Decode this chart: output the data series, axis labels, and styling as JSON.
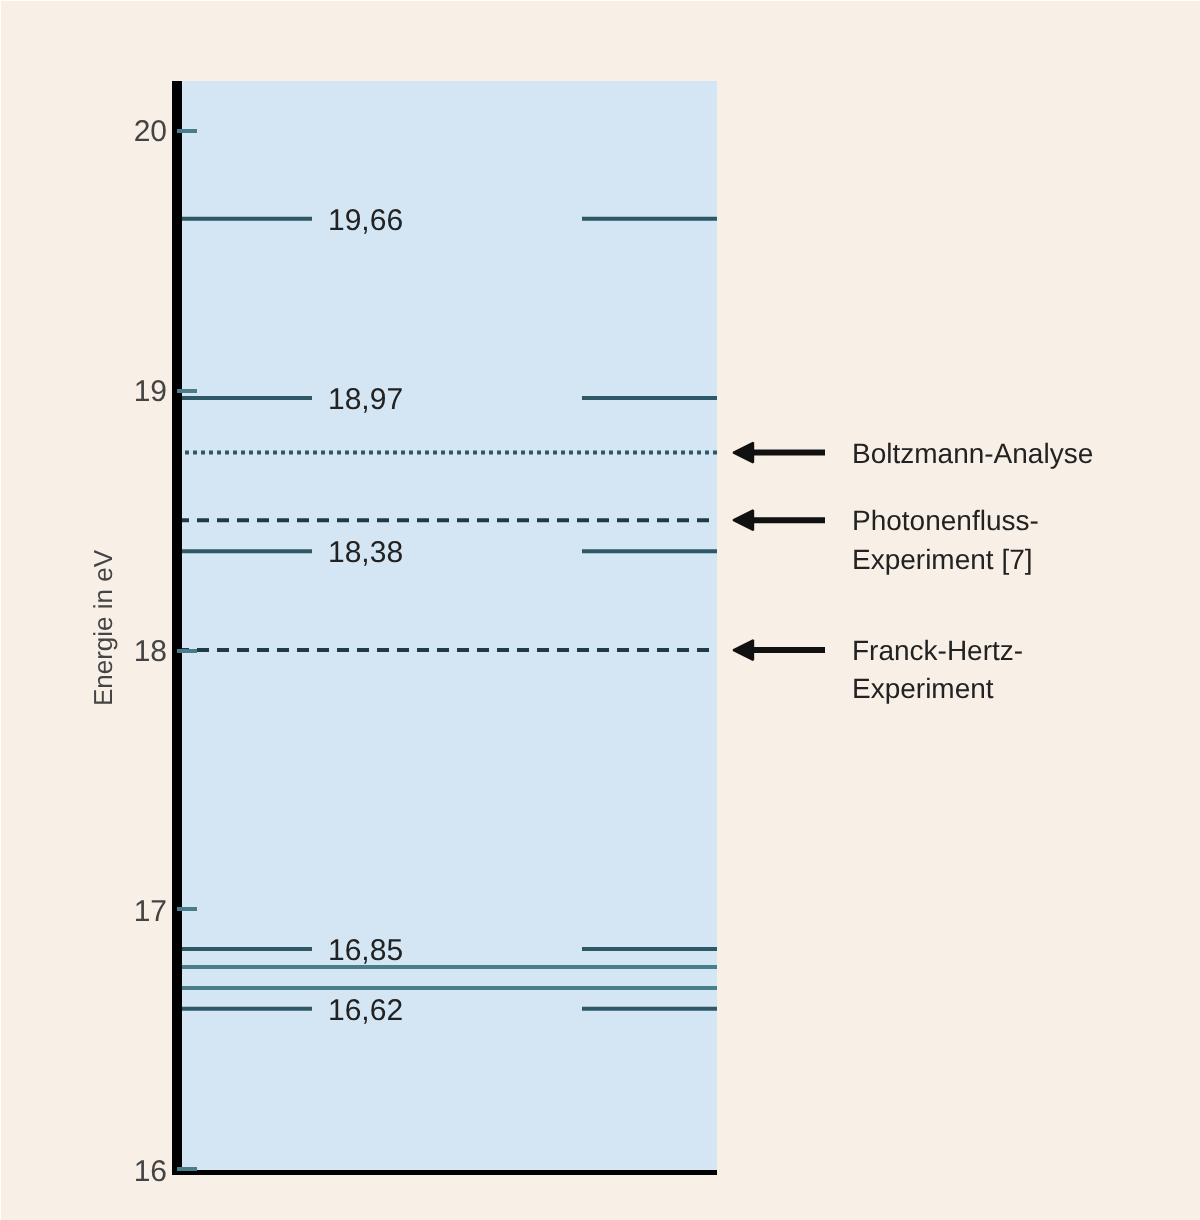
{
  "chart_data": {
    "type": "line",
    "ylabel": "Energie in eV",
    "ylim": [
      15.98,
      20.19
    ],
    "yticks": [
      16,
      17,
      18,
      19,
      20
    ],
    "categories": [
      null,
      null,
      null,
      null,
      null
    ],
    "grid": false,
    "marker": "none",
    "line_style": "solid",
    "series": [
      {
        "color": "#2e5866",
        "values": [
          19.66,
          19.66,
          null,
          19.66,
          19.66
        ],
        "value_labels": [
          null,
          "19,66",
          null,
          null,
          null
        ]
      },
      {
        "color": "#2e5866",
        "values": [
          18.97,
          18.97,
          null,
          18.97,
          18.97
        ],
        "value_labels": [
          null,
          "18,97",
          null,
          null,
          null
        ]
      },
      {
        "color": "#2e5866",
        "values": [
          18.38,
          18.38,
          null,
          18.38,
          18.38
        ],
        "value_labels": [
          null,
          "18,38",
          null,
          null,
          null
        ]
      },
      {
        "color": "#2e5866",
        "values": [
          16.85,
          16.85,
          null,
          16.85,
          16.85
        ],
        "value_labels": [
          null,
          "16,85",
          null,
          null,
          null
        ]
      },
      {
        "color": "#4a7d8c",
        "values": [
          16.78,
          16.78,
          16.78,
          16.78,
          16.78
        ]
      },
      {
        "color": "#4a7d8c",
        "values": [
          16.7,
          16.7,
          16.7,
          16.7,
          16.7
        ]
      },
      {
        "color": "#2e5866",
        "values": [
          16.62,
          16.62,
          null,
          16.62,
          16.62
        ],
        "value_labels": [
          null,
          "16,62",
          null,
          null,
          null
        ]
      }
    ],
    "ref_lines": [
      {
        "axis": "y",
        "value": 18.76,
        "label": "Boltzmann-Analyse",
        "color": "#2e5866",
        "line_style": "dotted"
      },
      {
        "axis": "y",
        "value": 18.5,
        "label": "Photonenfluss-\nExperiment [7]",
        "color": "#1f3c46",
        "line_style": "dashed"
      },
      {
        "axis": "y",
        "value": 18.0,
        "label": "Franck-Hertz-\nExperiment",
        "color": "#1f3c46",
        "line_style": "dashed"
      }
    ]
  }
}
